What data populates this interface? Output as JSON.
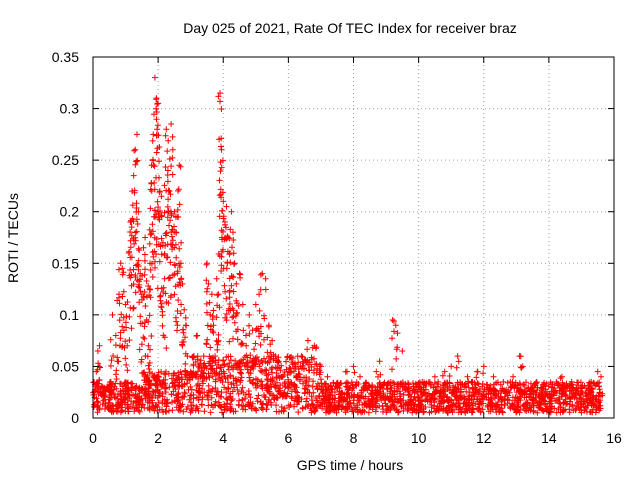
{
  "chart_data": {
    "type": "scatter",
    "title": "Day 025 of 2021, Rate Of TEC Index for receiver braz",
    "xlabel": "GPS time / hours",
    "ylabel": "ROTI / TECUs",
    "xlim": [
      0,
      16
    ],
    "ylim": [
      0,
      0.35
    ],
    "x_ticks": [
      "0",
      "2",
      "4",
      "6",
      "8",
      "10",
      "12",
      "14",
      "16"
    ],
    "y_ticks": [
      "0",
      "0.05",
      "0.1",
      "0.15",
      "0.2",
      "0.25",
      "0.3",
      "0.35"
    ],
    "grid": true,
    "marker": "+",
    "color": "#ff0000",
    "series": [
      {
        "values": [
          [
            0.05,
            0.02
          ],
          [
            0.1,
            0.045
          ],
          [
            0.15,
            0.065
          ],
          [
            0.2,
            0.07
          ],
          [
            0.3,
            0.03
          ],
          [
            0.5,
            0.02
          ],
          [
            0.55,
            0.035
          ],
          [
            0.6,
            0.1
          ],
          [
            0.7,
            0.08
          ],
          [
            0.75,
            0.055
          ],
          [
            0.8,
            0.12
          ],
          [
            0.85,
            0.15
          ],
          [
            0.9,
            0.145
          ],
          [
            0.95,
            0.085
          ],
          [
            1.0,
            0.11
          ],
          [
            1.05,
            0.07
          ],
          [
            1.1,
            0.16
          ],
          [
            1.15,
            0.19
          ],
          [
            1.2,
            0.22
          ],
          [
            1.25,
            0.235
          ],
          [
            1.3,
            0.26
          ],
          [
            1.35,
            0.275
          ],
          [
            1.4,
            0.2
          ],
          [
            1.45,
            0.14
          ],
          [
            1.5,
            0.12
          ],
          [
            1.55,
            0.165
          ],
          [
            1.6,
            0.175
          ],
          [
            1.65,
            0.095
          ],
          [
            1.7,
            0.07
          ],
          [
            1.75,
            0.15
          ],
          [
            1.8,
            0.245
          ],
          [
            1.85,
            0.275
          ],
          [
            1.9,
            0.33
          ],
          [
            1.95,
            0.31
          ],
          [
            2.0,
            0.305
          ],
          [
            2.05,
            0.22
          ],
          [
            2.1,
            0.215
          ],
          [
            2.15,
            0.17
          ],
          [
            2.2,
            0.135
          ],
          [
            2.25,
            0.28
          ],
          [
            2.3,
            0.24
          ],
          [
            2.35,
            0.22
          ],
          [
            2.4,
            0.285
          ],
          [
            2.45,
            0.26
          ],
          [
            2.5,
            0.2
          ],
          [
            2.55,
            0.18
          ],
          [
            2.6,
            0.195
          ],
          [
            2.65,
            0.245
          ],
          [
            2.7,
            0.15
          ],
          [
            2.75,
            0.13
          ],
          [
            2.8,
            0.105
          ],
          [
            2.85,
            0.09
          ],
          [
            2.9,
            0.06
          ],
          [
            3.0,
            0.045
          ],
          [
            3.1,
            0.06
          ],
          [
            3.2,
            0.08
          ],
          [
            3.3,
            0.04
          ],
          [
            3.4,
            0.06
          ],
          [
            3.5,
            0.15
          ],
          [
            3.55,
            0.13
          ],
          [
            3.6,
            0.1
          ],
          [
            3.65,
            0.12
          ],
          [
            3.7,
            0.09
          ],
          [
            3.75,
            0.06
          ],
          [
            3.8,
            0.135
          ],
          [
            3.85,
            0.12
          ],
          [
            3.9,
            0.315
          ],
          [
            3.95,
            0.26
          ],
          [
            4.0,
            0.21
          ],
          [
            4.05,
            0.19
          ],
          [
            4.1,
            0.205
          ],
          [
            4.15,
            0.175
          ],
          [
            4.2,
            0.16
          ],
          [
            4.25,
            0.2
          ],
          [
            4.3,
            0.18
          ],
          [
            4.35,
            0.15
          ],
          [
            4.4,
            0.13
          ],
          [
            4.5,
            0.14
          ],
          [
            4.6,
            0.11
          ],
          [
            4.7,
            0.08
          ],
          [
            4.8,
            0.1
          ],
          [
            4.9,
            0.085
          ],
          [
            5.0,
            0.11
          ],
          [
            5.1,
            0.12
          ],
          [
            5.2,
            0.14
          ],
          [
            5.3,
            0.135
          ],
          [
            5.4,
            0.09
          ],
          [
            5.5,
            0.075
          ],
          [
            5.6,
            0.06
          ],
          [
            5.7,
            0.055
          ],
          [
            5.8,
            0.04
          ],
          [
            5.9,
            0.03
          ],
          [
            6.0,
            0.035
          ],
          [
            6.2,
            0.05
          ],
          [
            6.4,
            0.06
          ],
          [
            6.6,
            0.075
          ],
          [
            6.8,
            0.07
          ],
          [
            7.0,
            0.05
          ],
          [
            7.2,
            0.04
          ],
          [
            7.5,
            0.03
          ],
          [
            7.8,
            0.045
          ],
          [
            8.0,
            0.05
          ],
          [
            8.2,
            0.04
          ],
          [
            8.5,
            0.03
          ],
          [
            8.7,
            0.045
          ],
          [
            8.8,
            0.055
          ],
          [
            9.2,
            0.095
          ],
          [
            9.3,
            0.09
          ],
          [
            9.5,
            0.065
          ],
          [
            9.7,
            0.03
          ],
          [
            10.0,
            0.02
          ],
          [
            10.5,
            0.04
          ],
          [
            10.8,
            0.045
          ],
          [
            11.0,
            0.05
          ],
          [
            11.2,
            0.06
          ],
          [
            11.5,
            0.04
          ],
          [
            11.8,
            0.045
          ],
          [
            12.0,
            0.05
          ],
          [
            12.3,
            0.04
          ],
          [
            12.6,
            0.035
          ],
          [
            12.9,
            0.04
          ],
          [
            13.1,
            0.06
          ],
          [
            13.2,
            0.05
          ],
          [
            13.5,
            0.03
          ],
          [
            13.8,
            0.025
          ],
          [
            14.1,
            0.03
          ],
          [
            14.4,
            0.04
          ],
          [
            14.7,
            0.035
          ],
          [
            15.0,
            0.03
          ],
          [
            15.3,
            0.035
          ],
          [
            15.5,
            0.045
          ],
          [
            15.6,
            0.04
          ]
        ]
      }
    ],
    "background_band": {
      "x_start": 0,
      "x_end": 15.6,
      "y_base_min": 0.005,
      "y_base_max": 0.035
    }
  }
}
